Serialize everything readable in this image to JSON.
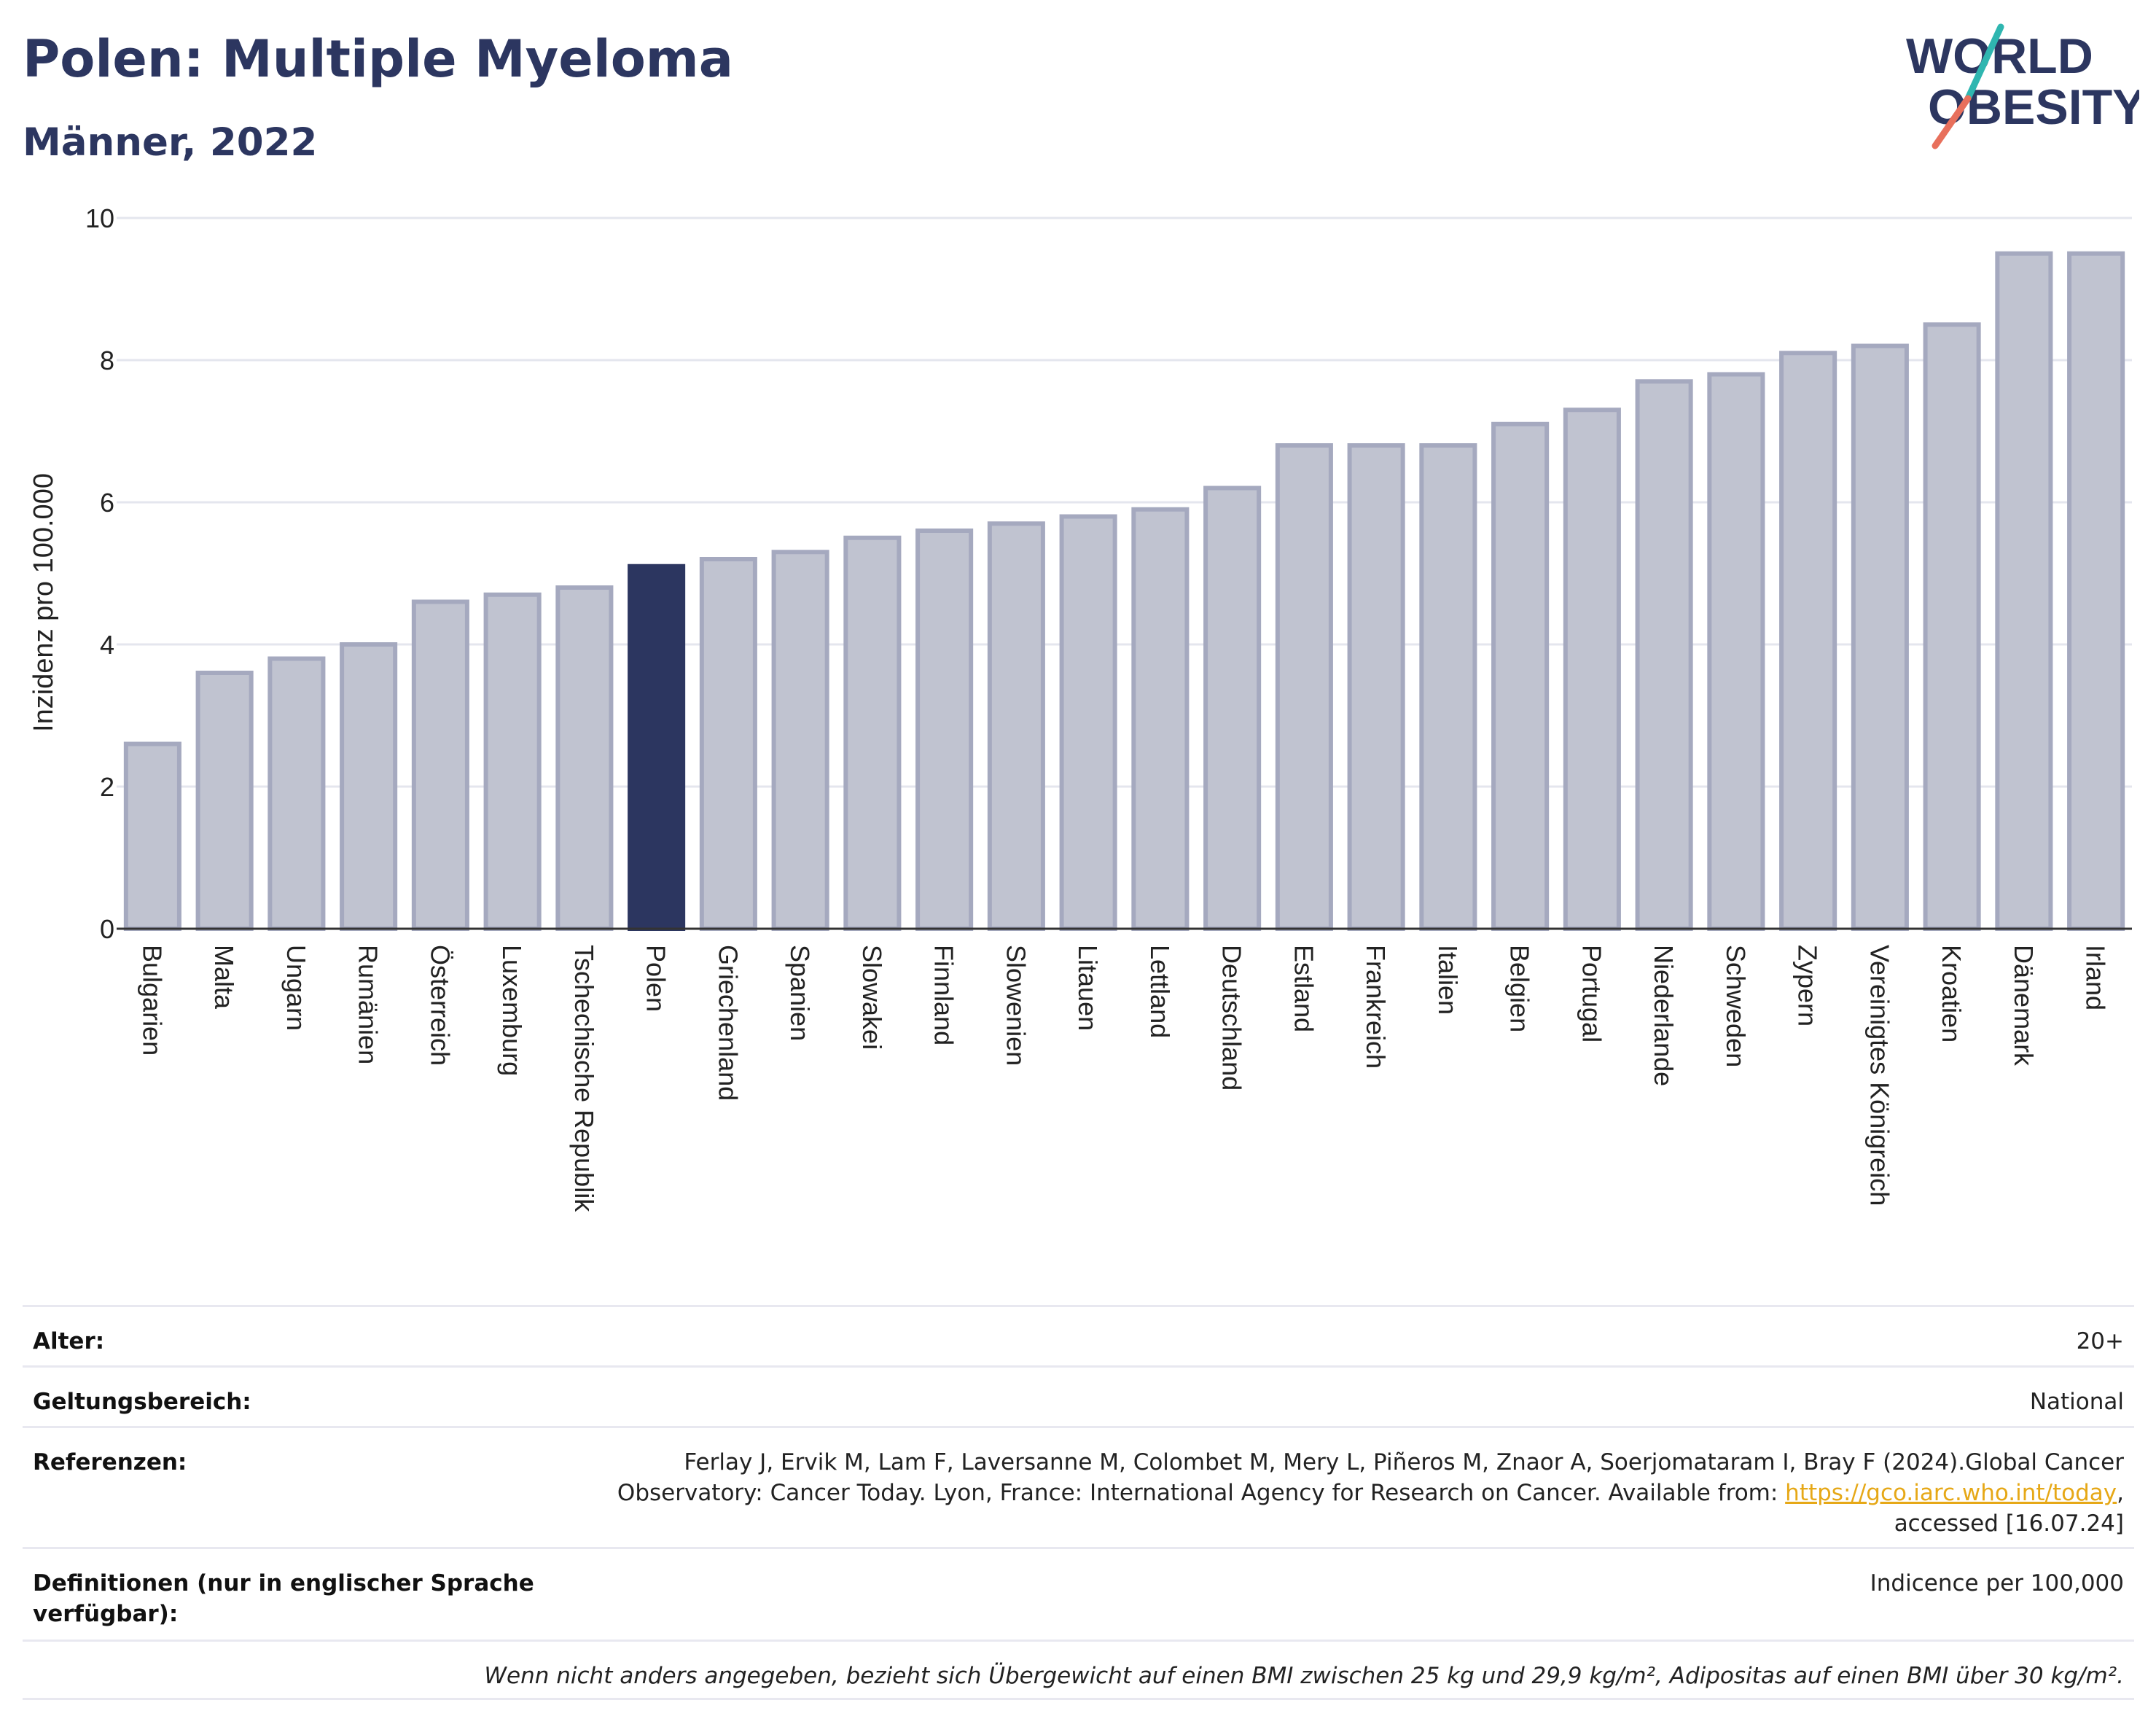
{
  "header": {
    "title": "Polen: Multiple Myeloma",
    "subtitle": "Männer, 2022"
  },
  "logo": {
    "line1": "WORLD",
    "line2": "OBESITY",
    "colors": {
      "text": "#2c3660",
      "slash_top": "#2fb6b0",
      "slash_bottom": "#e8705c"
    }
  },
  "chart_data": {
    "type": "bar",
    "ylabel": "Inzidenz pro 100.000",
    "ylim": [
      0,
      10
    ],
    "yticks": [
      0,
      2,
      4,
      6,
      8,
      10
    ],
    "grid": true,
    "highlight": "Polen",
    "colors": {
      "bar": "#c0c3d0",
      "bar_border": "#a5a9bf",
      "highlight": "#2c3660",
      "grid": "#e4e6ee",
      "axis": "#333333"
    },
    "categories": [
      "Bulgarien",
      "Malta",
      "Ungarn",
      "Rumänien",
      "Österreich",
      "Luxemburg",
      "Tschechische Republik",
      "Polen",
      "Griechenland",
      "Spanien",
      "Slowakei",
      "Finnland",
      "Slowenien",
      "Litauen",
      "Lettland",
      "Deutschland",
      "Estland",
      "Frankreich",
      "Italien",
      "Belgien",
      "Portugal",
      "Niederlande",
      "Schweden",
      "Zypern",
      "Vereinigtes Königreich",
      "Kroatien",
      "Dänemark",
      "Irland"
    ],
    "values": [
      2.6,
      3.6,
      3.8,
      4.0,
      4.6,
      4.7,
      4.8,
      5.1,
      5.2,
      5.3,
      5.5,
      5.6,
      5.7,
      5.8,
      5.9,
      6.2,
      6.8,
      6.8,
      6.8,
      7.1,
      7.3,
      7.7,
      7.8,
      8.1,
      8.2,
      8.5,
      9.5,
      9.5
    ]
  },
  "footer": {
    "age_label": "Alter:",
    "age_value": "20+",
    "scope_label": "Geltungsbereich:",
    "scope_value": "National",
    "ref_label": "Referenzen:",
    "ref_text_1": "Ferlay J, Ervik M, Lam F, Laversanne M, Colombet M, Mery L, Piñeros M, Znaor A, Soerjomataram I, Bray F (2024).Global Cancer",
    "ref_text_2": "Observatory: Cancer Today. Lyon, France: International Agency for Research on Cancer. Available from: ",
    "ref_link": "https://gco.iarc.who.int/today",
    "ref_text_3": ",",
    "ref_text_4": "accessed [16.07.24]",
    "def_label": "Definitionen (nur in englischer Sprache verfügbar):",
    "def_value": "Indicence per 100,000",
    "note": "Wenn nicht anders angegeben, bezieht sich Übergewicht auf einen BMI zwischen 25 kg und 29,9 kg/m², Adipositas auf einen BMI über 30 kg/m²."
  }
}
